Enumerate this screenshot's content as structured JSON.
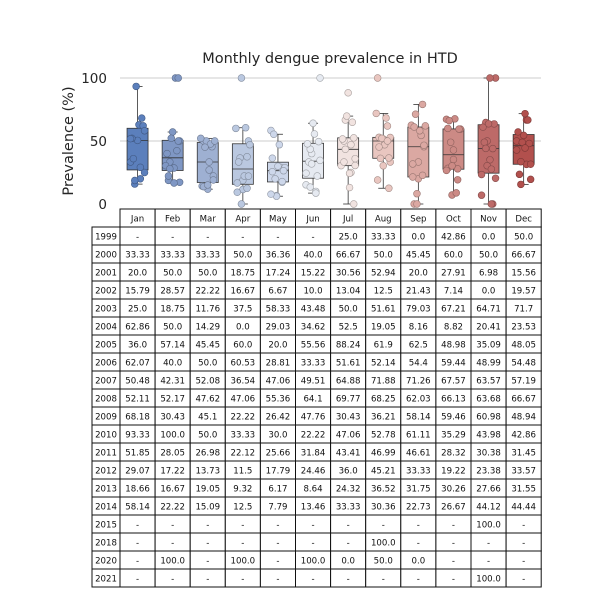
{
  "chart_data": {
    "type": "box",
    "title": "Monthly dengue prevalence in HTD",
    "ylabel": "Prevalence (%)",
    "ylim": [
      0,
      100
    ],
    "yticks": [
      0,
      50,
      100
    ],
    "grid": true,
    "months": [
      "Jan",
      "Feb",
      "Mar",
      "Apr",
      "May",
      "Jun",
      "Jul",
      "Aug",
      "Sep",
      "Oct",
      "Nov",
      "Dec"
    ],
    "colors": [
      "#5b7fbc",
      "#7f97c4",
      "#9eb0d2",
      "#bac8e0",
      "#cdd7ea",
      "#e6eaf1",
      "#f1e3e0",
      "#e9c6c0",
      "#dba8a2",
      "#cc8a85",
      "#bd6a68",
      "#b2504d"
    ],
    "table": {
      "years": [
        "1999",
        "2000",
        "2001",
        "2002",
        "2003",
        "2004",
        "2005",
        "2006",
        "2007",
        "2008",
        "2009",
        "2010",
        "2011",
        "2012",
        "2013",
        "2014",
        "2015",
        "2018",
        "2020",
        "2021"
      ],
      "rows": [
        [
          "-",
          "-",
          "-",
          "-",
          "-",
          "-",
          "25.0",
          "33.33",
          "0.0",
          "42.86",
          "0.0",
          "50.0"
        ],
        [
          "33.33",
          "33.33",
          "33.33",
          "50.0",
          "36.36",
          "40.0",
          "66.67",
          "50.0",
          "45.45",
          "60.0",
          "50.0",
          "66.67"
        ],
        [
          "20.0",
          "50.0",
          "50.0",
          "18.75",
          "17.24",
          "15.22",
          "30.56",
          "52.94",
          "20.0",
          "27.91",
          "6.98",
          "15.56"
        ],
        [
          "15.79",
          "28.57",
          "22.22",
          "16.67",
          "6.67",
          "10.0",
          "13.04",
          "12.5",
          "21.43",
          "7.14",
          "0.0",
          "19.57"
        ],
        [
          "25.0",
          "18.75",
          "11.76",
          "37.5",
          "58.33",
          "43.48",
          "50.0",
          "51.61",
          "79.03",
          "67.21",
          "64.71",
          "71.7"
        ],
        [
          "62.86",
          "50.0",
          "14.29",
          "0.0",
          "29.03",
          "34.62",
          "52.5",
          "19.05",
          "8.16",
          "8.82",
          "20.41",
          "23.53"
        ],
        [
          "36.0",
          "57.14",
          "45.45",
          "60.0",
          "20.0",
          "55.56",
          "88.24",
          "61.9",
          "62.5",
          "48.98",
          "35.09",
          "48.05"
        ],
        [
          "62.07",
          "40.0",
          "50.0",
          "60.53",
          "28.81",
          "33.33",
          "51.61",
          "52.14",
          "54.4",
          "59.44",
          "48.99",
          "54.48"
        ],
        [
          "50.48",
          "42.31",
          "52.08",
          "36.54",
          "47.06",
          "49.51",
          "64.88",
          "71.88",
          "71.26",
          "67.57",
          "63.57",
          "57.19"
        ],
        [
          "52.11",
          "52.17",
          "47.62",
          "47.06",
          "55.36",
          "64.1",
          "69.77",
          "68.25",
          "62.03",
          "66.13",
          "63.68",
          "66.67"
        ],
        [
          "68.18",
          "30.43",
          "45.1",
          "22.22",
          "26.42",
          "47.76",
          "30.43",
          "36.21",
          "58.14",
          "59.46",
          "60.98",
          "48.94"
        ],
        [
          "93.33",
          "100.0",
          "50.0",
          "33.33",
          "30.0",
          "22.22",
          "47.06",
          "52.78",
          "61.11",
          "35.29",
          "43.98",
          "42.86"
        ],
        [
          "51.85",
          "28.05",
          "26.98",
          "22.12",
          "25.66",
          "31.84",
          "43.41",
          "46.99",
          "46.61",
          "28.32",
          "30.38",
          "31.45"
        ],
        [
          "29.07",
          "17.22",
          "13.73",
          "11.5",
          "17.79",
          "24.46",
          "36.0",
          "45.21",
          "33.33",
          "19.22",
          "23.38",
          "33.57"
        ],
        [
          "18.66",
          "16.67",
          "19.05",
          "9.32",
          "6.17",
          "8.64",
          "24.32",
          "36.52",
          "31.75",
          "30.26",
          "27.66",
          "31.55"
        ],
        [
          "58.14",
          "22.22",
          "15.09",
          "12.5",
          "7.79",
          "13.46",
          "33.33",
          "30.36",
          "22.73",
          "26.67",
          "44.12",
          "44.44"
        ],
        [
          "-",
          "-",
          "-",
          "-",
          "-",
          "-",
          "-",
          "-",
          "-",
          "-",
          "100.0",
          "-"
        ],
        [
          "-",
          "-",
          "-",
          "-",
          "-",
          "-",
          "-",
          "100.0",
          "-",
          "-",
          "-",
          "-"
        ],
        [
          "-",
          "100.0",
          "-",
          "100.0",
          "-",
          "100.0",
          "0.0",
          "50.0",
          "0.0",
          "-",
          "-",
          "-"
        ],
        [
          "-",
          "-",
          "-",
          "-",
          "-",
          "-",
          "-",
          "-",
          "-",
          "-",
          "100.0",
          "-"
        ]
      ]
    }
  }
}
